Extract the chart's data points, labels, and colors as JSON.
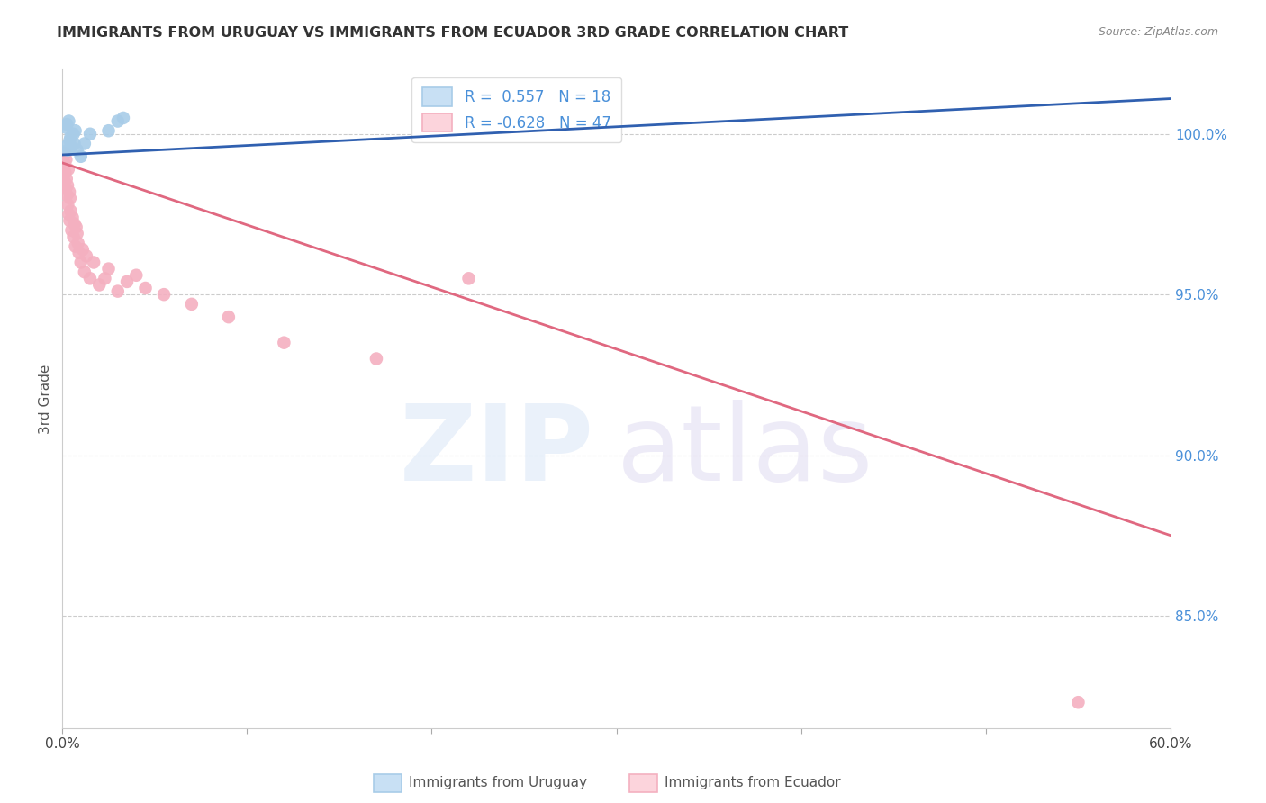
{
  "title": "IMMIGRANTS FROM URUGUAY VS IMMIGRANTS FROM ECUADOR 3RD GRADE CORRELATION CHART",
  "source": "Source: ZipAtlas.com",
  "ylabel": "3rd Grade",
  "right_yticks": [
    100.0,
    95.0,
    90.0,
    85.0
  ],
  "xlim": [
    0.0,
    60.0
  ],
  "ylim": [
    81.5,
    102.0
  ],
  "uruguay_R": 0.557,
  "uruguay_N": 18,
  "ecuador_R": -0.628,
  "ecuador_N": 47,
  "uruguay_color": "#a8cce8",
  "ecuador_color": "#f4b0c0",
  "uruguay_line_color": "#3060b0",
  "ecuador_line_color": "#e06880",
  "legend_box_color_uruguay": "#c8e0f4",
  "legend_box_color_ecuador": "#fcd4dc",
  "uruguay_line_x0": 0.0,
  "uruguay_line_y0": 99.35,
  "uruguay_line_x1": 60.0,
  "uruguay_line_y1": 101.1,
  "ecuador_line_x0": 0.0,
  "ecuador_line_y0": 99.1,
  "ecuador_line_x1": 60.0,
  "ecuador_line_y1": 87.5,
  "uruguay_x": [
    0.15,
    0.2,
    0.25,
    0.3,
    0.35,
    0.4,
    0.45,
    0.5,
    0.6,
    0.65,
    0.7,
    0.8,
    1.0,
    1.2,
    1.5,
    2.5,
    3.0,
    3.3
  ],
  "uruguay_y": [
    99.6,
    100.2,
    100.3,
    99.5,
    100.4,
    99.8,
    99.9,
    99.6,
    100.0,
    99.7,
    100.1,
    99.5,
    99.3,
    99.7,
    100.0,
    100.1,
    100.4,
    100.5
  ],
  "ecuador_x": [
    0.05,
    0.08,
    0.1,
    0.12,
    0.15,
    0.18,
    0.2,
    0.22,
    0.25,
    0.28,
    0.3,
    0.32,
    0.35,
    0.38,
    0.4,
    0.42,
    0.45,
    0.5,
    0.55,
    0.6,
    0.65,
    0.7,
    0.75,
    0.8,
    0.85,
    0.9,
    1.0,
    1.1,
    1.2,
    1.3,
    1.5,
    1.7,
    2.0,
    2.3,
    2.5,
    3.0,
    3.5,
    4.0,
    4.5,
    5.5,
    7.0,
    9.0,
    12.0,
    17.0,
    22.0,
    55.0,
    0.15
  ],
  "ecuador_y": [
    99.0,
    98.7,
    99.1,
    98.5,
    98.8,
    98.3,
    99.2,
    98.6,
    98.1,
    98.4,
    97.8,
    98.9,
    97.5,
    98.2,
    97.3,
    98.0,
    97.6,
    97.0,
    97.4,
    96.8,
    97.2,
    96.5,
    97.1,
    96.9,
    96.6,
    96.3,
    96.0,
    96.4,
    95.7,
    96.2,
    95.5,
    96.0,
    95.3,
    95.5,
    95.8,
    95.1,
    95.4,
    95.6,
    95.2,
    95.0,
    94.7,
    94.3,
    93.5,
    93.0,
    95.5,
    82.3,
    99.4
  ]
}
